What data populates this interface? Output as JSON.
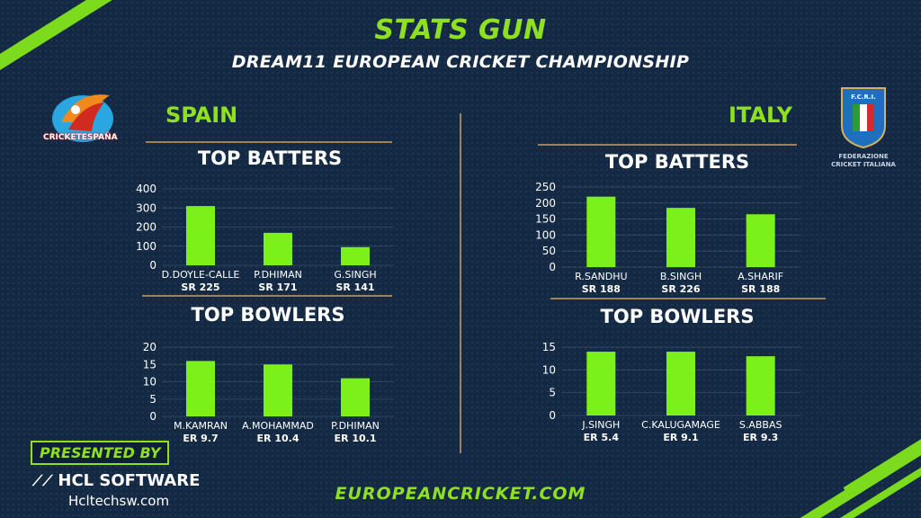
{
  "header": {
    "title": "STATS GUN",
    "subtitle": "DREAM11 EUROPEAN CRICKET CHAMPIONSHIP"
  },
  "teams": {
    "left": {
      "name": "SPAIN",
      "logo_text": "CRICKETESPAÑA"
    },
    "right": {
      "name": "ITALY",
      "logo_text_1": "FEDERAZIONE",
      "logo_text_2": "CRICKET ITALIANA",
      "badge_text": "F.C.R.I."
    }
  },
  "footer": {
    "url": "EUROPEANCRICKET.COM",
    "presented_by": "PRESENTED BY",
    "sponsor": "HCL SOFTWARE",
    "sponsor_site": "Hcltechsw.com"
  },
  "colors": {
    "bar": "#7cf01a",
    "accent": "#8ee021",
    "background": "#142a44",
    "divider": "#a08058"
  },
  "chart_data": [
    {
      "type": "bar",
      "title": "TOP BATTERS",
      "team": "SPAIN",
      "categories": [
        "D.DOYLE-CALLE",
        "P.DHIMAN",
        "G.SINGH"
      ],
      "sublabels": [
        "SR 225",
        "SR 171",
        "SR 141"
      ],
      "values": [
        310,
        170,
        95
      ],
      "yticks": [
        0,
        100,
        200,
        300,
        400
      ],
      "ylim": [
        0,
        400
      ]
    },
    {
      "type": "bar",
      "title": "TOP BOWLERS",
      "team": "SPAIN",
      "categories": [
        "M.KAMRAN",
        "A.MOHAMMAD",
        "P.DHIMAN"
      ],
      "sublabels": [
        "ER 9.7",
        "ER 10.4",
        "ER 10.1"
      ],
      "values": [
        16,
        15,
        11
      ],
      "yticks": [
        0,
        5,
        10,
        15,
        20
      ],
      "ylim": [
        0,
        20
      ]
    },
    {
      "type": "bar",
      "title": "TOP BATTERS",
      "team": "ITALY",
      "categories": [
        "R.SANDHU",
        "B.SINGH",
        "A.SHARIF"
      ],
      "sublabels": [
        "SR 188",
        "SR 226",
        "SR 188"
      ],
      "values": [
        220,
        185,
        165
      ],
      "yticks": [
        0,
        50,
        100,
        150,
        200,
        250
      ],
      "ylim": [
        0,
        250
      ]
    },
    {
      "type": "bar",
      "title": "TOP BOWLERS",
      "team": "ITALY",
      "categories": [
        "J.SINGH",
        "C.KALUGAMAGE",
        "S.ABBAS"
      ],
      "sublabels": [
        "ER 5.4",
        "ER 9.1",
        "ER 9.3"
      ],
      "values": [
        14,
        14,
        13
      ],
      "yticks": [
        0,
        5,
        10,
        15
      ],
      "ylim": [
        0,
        15
      ]
    }
  ]
}
